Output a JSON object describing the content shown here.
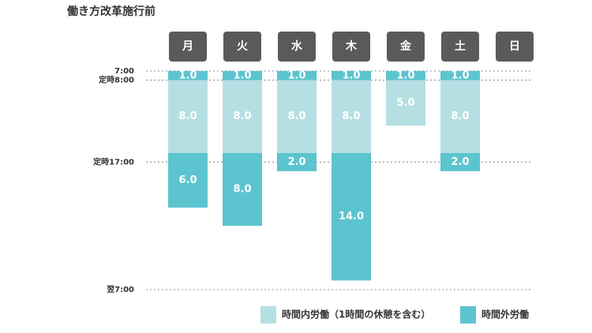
{
  "chart_data": {
    "type": "stacked-bar",
    "title": "働き方改革施行前",
    "categories": [
      "月",
      "火",
      "水",
      "木",
      "金",
      "土",
      "日"
    ],
    "series": [
      {
        "name": "時間内労働（1時間の休憩を含む）",
        "color": "#b6dfe3",
        "values": [
          8,
          8,
          8,
          8,
          5,
          8,
          null
        ],
        "value_labels": [
          "8.0",
          "8.0",
          "8.0",
          "8.0",
          "5.0",
          "8.0",
          null
        ]
      },
      {
        "name": "時間外労働",
        "color": "#5bc4cf",
        "values": [
          1,
          1,
          1,
          1,
          1,
          1,
          null
        ],
        "value_labels": [
          "1.0",
          "1.0",
          "1.0",
          "1.0",
          "1.0",
          "1.0",
          null
        ],
        "late_values": [
          6,
          8,
          2,
          14,
          null,
          2,
          null
        ],
        "late_value_labels": [
          "6.0",
          "8.0",
          "2.0",
          "14.0",
          null,
          "2.0",
          null
        ]
      }
    ],
    "ylim": [
      0,
      24
    ],
    "yticks": [
      {
        "value": 0,
        "label": "7:00"
      },
      {
        "value": 1,
        "label": "定時8:00"
      },
      {
        "value": 10,
        "label": "定時17:00"
      },
      {
        "value": 24,
        "label": "翌7:00"
      }
    ],
    "grid": true
  }
}
